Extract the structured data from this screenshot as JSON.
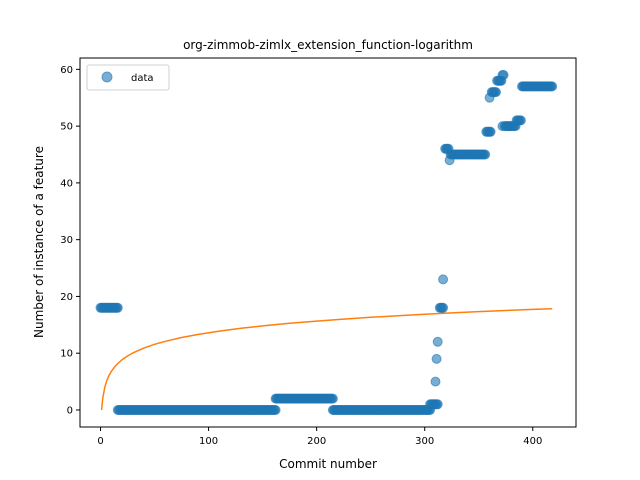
{
  "chart_data": {
    "type": "scatter",
    "title": "org-zimmob-zimlx_extension_function-logarithm",
    "xlabel": "Commit number",
    "ylabel": "Number of instance of a feature",
    "xlim": [
      -19,
      440
    ],
    "ylim": [
      -3,
      62
    ],
    "xticks": [
      0,
      100,
      200,
      300,
      400
    ],
    "yticks": [
      0,
      10,
      20,
      30,
      40,
      50,
      60
    ],
    "legend": {
      "placement": "top-left",
      "entries": [
        "data"
      ]
    },
    "colors": {
      "data": "#1f77b4",
      "fit": "#ff7f0e"
    },
    "series": [
      {
        "name": "data",
        "style": "points",
        "segments": [
          {
            "x_start": 0,
            "x_end": 16,
            "y": 18
          },
          {
            "x_start": 16,
            "x_end": 162,
            "y": 0
          },
          {
            "x_start": 162,
            "x_end": 215,
            "y": 2
          },
          {
            "x_start": 215,
            "x_end": 305,
            "y": 0
          },
          {
            "x_start": 305,
            "x_end": 312,
            "y": 1
          },
          {
            "x_start": 314,
            "x_end": 317,
            "y": 18
          },
          {
            "x_start": 319,
            "x_end": 322,
            "y": 46
          },
          {
            "x_start": 324,
            "x_end": 356,
            "y": 45
          },
          {
            "x_start": 357,
            "x_end": 361,
            "y": 49
          },
          {
            "x_start": 362,
            "x_end": 366,
            "y": 56
          },
          {
            "x_start": 367,
            "x_end": 371,
            "y": 58
          },
          {
            "x_start": 374,
            "x_end": 384,
            "y": 50
          },
          {
            "x_start": 385,
            "x_end": 389,
            "y": 51
          },
          {
            "x_start": 390,
            "x_end": 418,
            "y": 57
          }
        ],
        "points": [
          [
            310,
            5
          ],
          [
            311,
            9
          ],
          [
            312,
            12
          ],
          [
            317,
            23
          ],
          [
            323,
            44
          ],
          [
            360,
            55
          ],
          [
            372,
            59
          ],
          [
            373,
            59
          ],
          [
            372,
            50
          ]
        ]
      },
      {
        "name": "",
        "style": "line",
        "function": "logarithmic fit",
        "x": [
          1,
          2,
          4,
          6,
          8,
          10,
          13,
          16,
          20,
          25,
          30,
          40,
          50,
          60,
          75,
          90,
          110,
          130,
          150,
          175,
          200,
          225,
          250,
          275,
          300,
          325,
          350,
          375,
          400,
          418
        ],
        "y": [
          0.0,
          2.05,
          4.09,
          5.29,
          6.14,
          6.8,
          7.57,
          8.19,
          8.85,
          9.51,
          10.05,
          10.9,
          11.56,
          12.1,
          12.76,
          13.3,
          13.89,
          14.39,
          14.81,
          15.27,
          15.66,
          16.01,
          16.32,
          16.61,
          16.86,
          17.1,
          17.32,
          17.52,
          17.71,
          17.84
        ]
      }
    ]
  }
}
